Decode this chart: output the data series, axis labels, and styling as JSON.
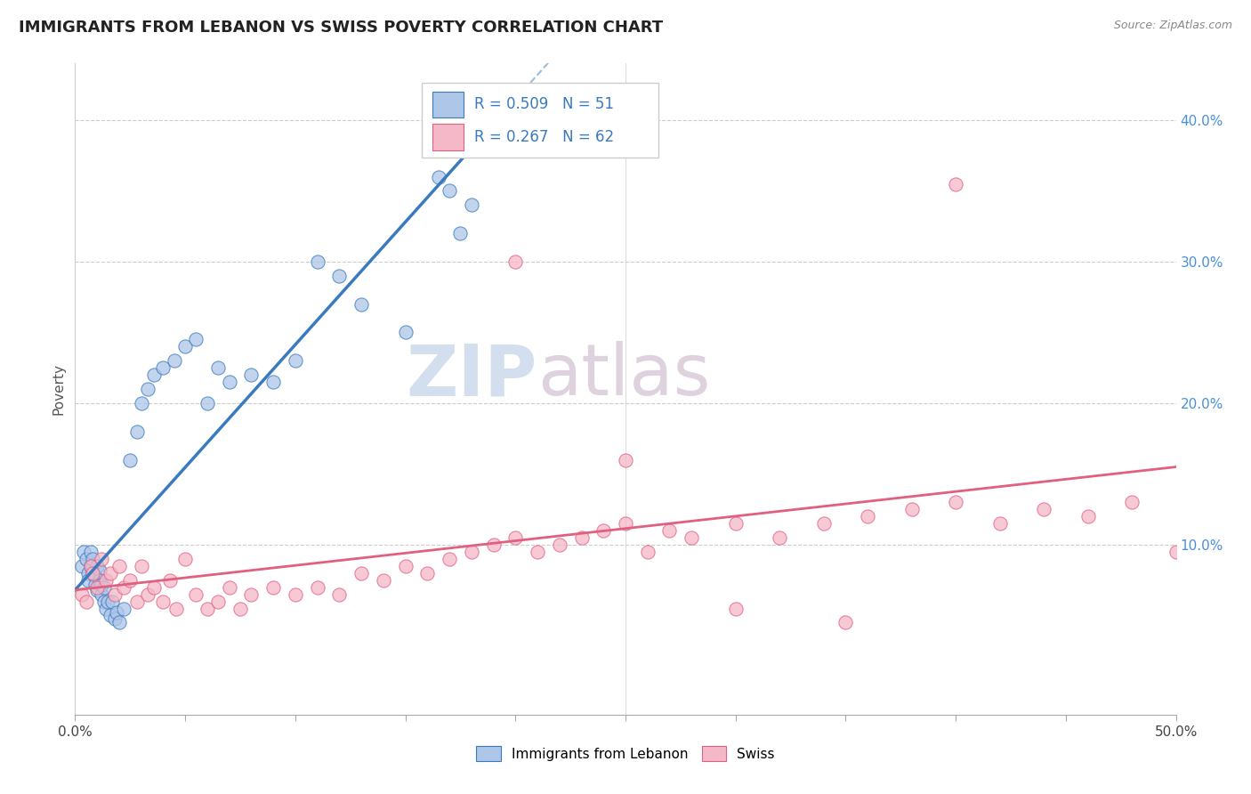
{
  "title": "IMMIGRANTS FROM LEBANON VS SWISS POVERTY CORRELATION CHART",
  "source": "Source: ZipAtlas.com",
  "ylabel": "Poverty",
  "xlim": [
    0.0,
    0.5
  ],
  "ylim": [
    -0.02,
    0.44
  ],
  "yticks_right": [
    0.1,
    0.2,
    0.3,
    0.4
  ],
  "ytick_right_labels": [
    "10.0%",
    "20.0%",
    "30.0%",
    "40.0%"
  ],
  "r_blue": 0.509,
  "n_blue": 51,
  "r_pink": 0.267,
  "n_pink": 62,
  "blue_color": "#aec6e8",
  "pink_color": "#f4b8c8",
  "blue_line_color": "#3a7abf",
  "pink_line_color": "#e06080",
  "blue_edge_color": "#3a7abf",
  "pink_edge_color": "#e06080",
  "legend_label_blue": "Immigrants from Lebanon",
  "legend_label_pink": "Swiss",
  "watermark_zip": "ZIP",
  "watermark_atlas": "atlas",
  "blue_scatter_x": [
    0.003,
    0.004,
    0.005,
    0.006,
    0.006,
    0.007,
    0.007,
    0.008,
    0.008,
    0.008,
    0.009,
    0.009,
    0.01,
    0.01,
    0.011,
    0.011,
    0.012,
    0.012,
    0.013,
    0.013,
    0.014,
    0.015,
    0.016,
    0.017,
    0.018,
    0.019,
    0.02,
    0.022,
    0.025,
    0.028,
    0.03,
    0.033,
    0.036,
    0.04,
    0.045,
    0.05,
    0.055,
    0.06,
    0.065,
    0.07,
    0.08,
    0.09,
    0.1,
    0.11,
    0.12,
    0.13,
    0.15,
    0.165,
    0.17,
    0.175,
    0.18
  ],
  "blue_scatter_y": [
    0.085,
    0.095,
    0.09,
    0.08,
    0.075,
    0.085,
    0.095,
    0.08,
    0.085,
    0.09,
    0.078,
    0.072,
    0.085,
    0.068,
    0.082,
    0.075,
    0.065,
    0.072,
    0.06,
    0.07,
    0.055,
    0.06,
    0.05,
    0.06,
    0.048,
    0.052,
    0.045,
    0.055,
    0.16,
    0.18,
    0.2,
    0.21,
    0.22,
    0.225,
    0.23,
    0.24,
    0.245,
    0.2,
    0.225,
    0.215,
    0.22,
    0.215,
    0.23,
    0.3,
    0.29,
    0.27,
    0.25,
    0.36,
    0.35,
    0.32,
    0.34
  ],
  "pink_scatter_x": [
    0.003,
    0.005,
    0.007,
    0.008,
    0.01,
    0.012,
    0.014,
    0.016,
    0.018,
    0.02,
    0.022,
    0.025,
    0.028,
    0.03,
    0.033,
    0.036,
    0.04,
    0.043,
    0.046,
    0.05,
    0.055,
    0.06,
    0.065,
    0.07,
    0.075,
    0.08,
    0.09,
    0.1,
    0.11,
    0.12,
    0.13,
    0.14,
    0.15,
    0.16,
    0.17,
    0.18,
    0.19,
    0.2,
    0.21,
    0.22,
    0.23,
    0.24,
    0.25,
    0.26,
    0.27,
    0.28,
    0.3,
    0.32,
    0.34,
    0.36,
    0.38,
    0.4,
    0.42,
    0.44,
    0.46,
    0.48,
    0.5,
    0.35,
    0.3,
    0.25,
    0.2,
    0.4
  ],
  "pink_scatter_y": [
    0.065,
    0.06,
    0.085,
    0.08,
    0.07,
    0.09,
    0.075,
    0.08,
    0.065,
    0.085,
    0.07,
    0.075,
    0.06,
    0.085,
    0.065,
    0.07,
    0.06,
    0.075,
    0.055,
    0.09,
    0.065,
    0.055,
    0.06,
    0.07,
    0.055,
    0.065,
    0.07,
    0.065,
    0.07,
    0.065,
    0.08,
    0.075,
    0.085,
    0.08,
    0.09,
    0.095,
    0.1,
    0.105,
    0.095,
    0.1,
    0.105,
    0.11,
    0.115,
    0.095,
    0.11,
    0.105,
    0.115,
    0.105,
    0.115,
    0.12,
    0.125,
    0.13,
    0.115,
    0.125,
    0.12,
    0.13,
    0.095,
    0.045,
    0.055,
    0.16,
    0.3,
    0.355
  ],
  "blue_line_x_end": 0.18,
  "blue_line_y_start": 0.068,
  "blue_line_y_end": 0.38,
  "pink_line_x_start": 0.0,
  "pink_line_y_start": 0.068,
  "pink_line_x_end": 0.5,
  "pink_line_y_end": 0.155
}
